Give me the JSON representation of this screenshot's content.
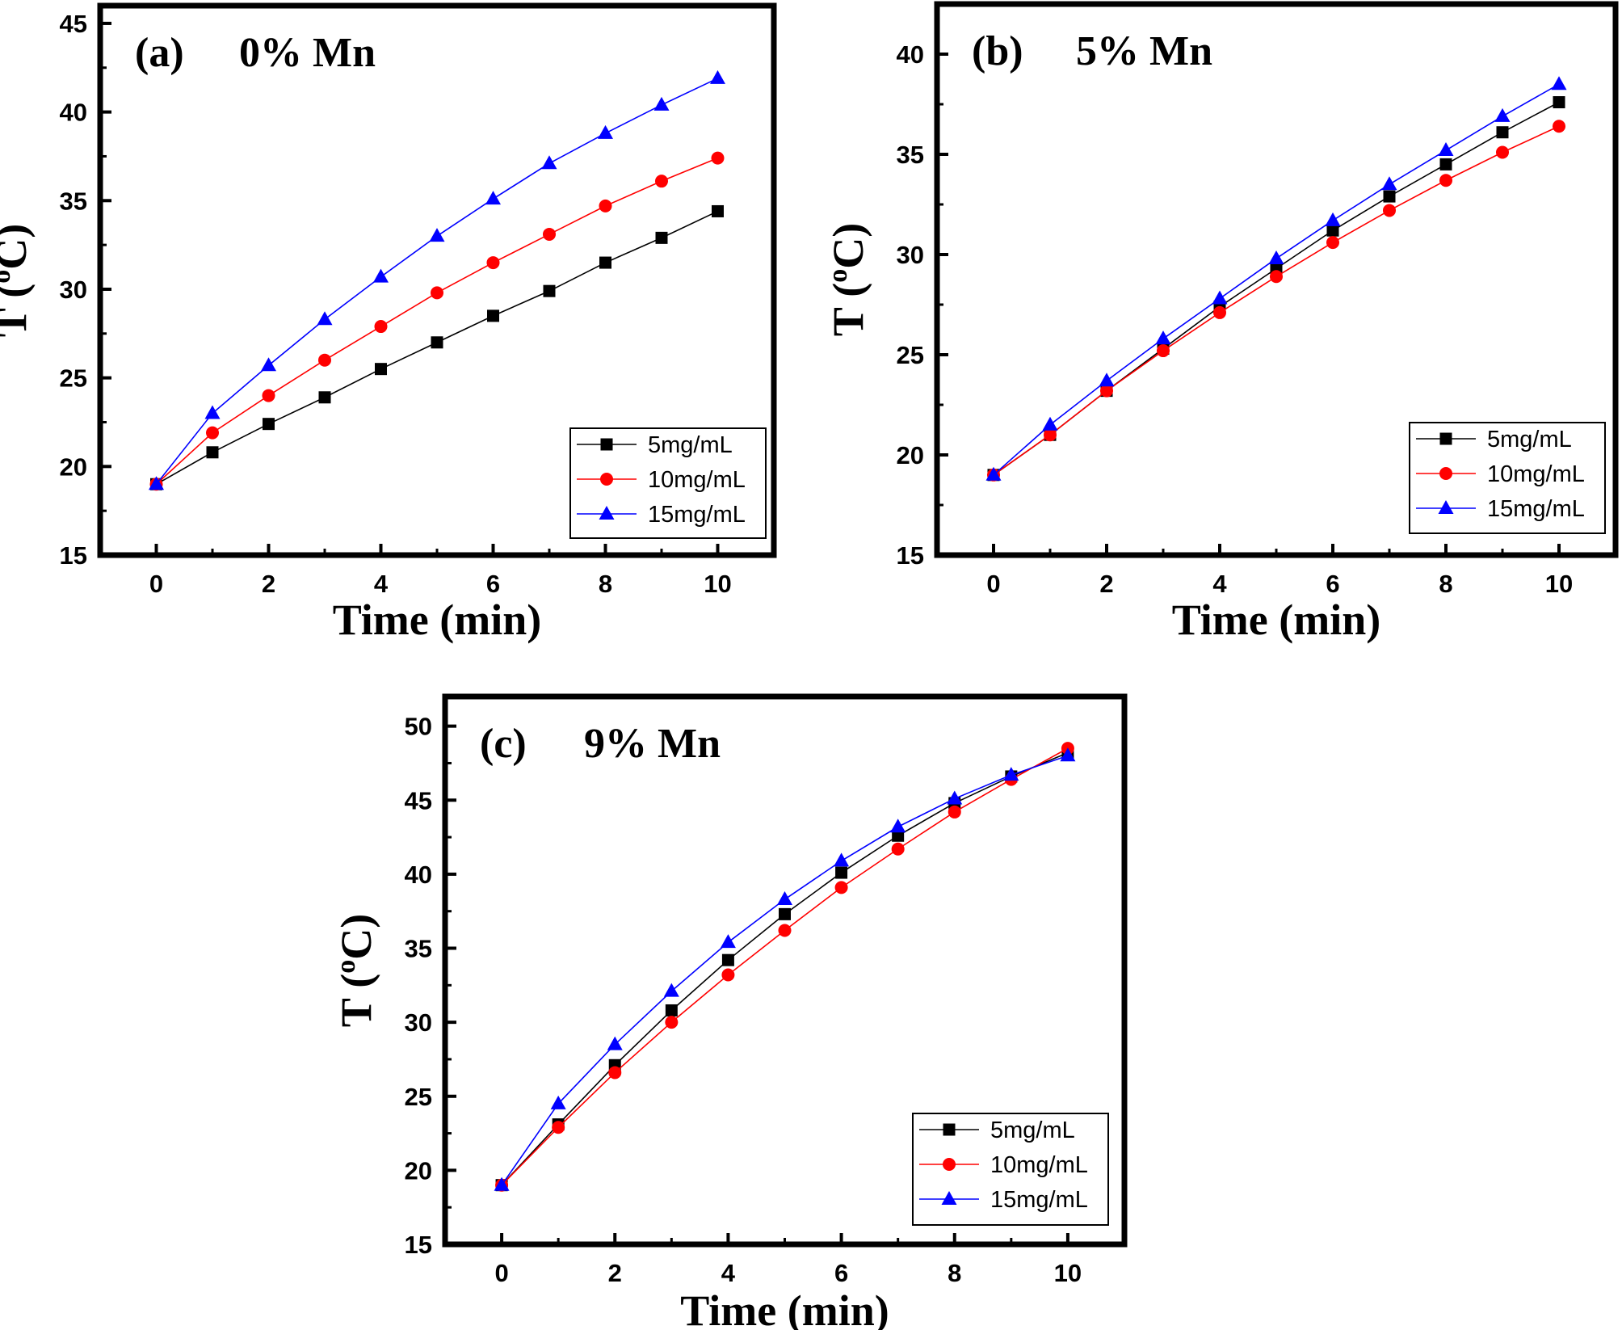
{
  "figure": {
    "background": "#ffffff"
  },
  "chart_data": [
    {
      "id": "a",
      "type": "line",
      "panel_label": "(a)",
      "title": "0% Mn",
      "xlabel": "Time (min)",
      "ylabel": "T (oC)",
      "ylabel_main": "T (",
      "ylabel_sup": "o",
      "ylabel_end": "C)",
      "xlim": [
        -1,
        11
      ],
      "ylim": [
        15,
        46
      ],
      "xticks": [
        0,
        2,
        4,
        6,
        8,
        10
      ],
      "yticks": [
        15,
        20,
        25,
        30,
        35,
        40,
        45
      ],
      "grid": false,
      "legend_position": "bottom-right",
      "x": [
        0,
        1,
        2,
        3,
        4,
        5,
        6,
        7,
        8,
        9,
        10
      ],
      "series": [
        {
          "name": "5mg/mL",
          "color": "#000000",
          "marker": "square",
          "values": [
            19.0,
            20.8,
            22.4,
            23.9,
            25.5,
            27.0,
            28.5,
            29.9,
            31.5,
            32.9,
            34.4
          ]
        },
        {
          "name": "10mg/mL",
          "color": "#ff0000",
          "marker": "circle",
          "values": [
            19.0,
            21.9,
            24.0,
            26.0,
            27.9,
            29.8,
            31.5,
            33.1,
            34.7,
            36.1,
            37.4
          ]
        },
        {
          "name": "15mg/mL",
          "color": "#0000ff",
          "marker": "triangle",
          "values": [
            19.0,
            23.0,
            25.7,
            28.3,
            30.7,
            33.0,
            35.1,
            37.1,
            38.8,
            40.4,
            41.9
          ]
        }
      ]
    },
    {
      "id": "b",
      "type": "line",
      "panel_label": "(b)",
      "title": "5% Mn",
      "xlabel": "Time (min)",
      "ylabel": "T (oC)",
      "ylabel_main": "T (",
      "ylabel_sup": "o",
      "ylabel_end": "C)",
      "xlim": [
        -1,
        11
      ],
      "ylim": [
        15,
        42.5
      ],
      "xticks": [
        0,
        2,
        4,
        6,
        8,
        10
      ],
      "yticks": [
        15,
        20,
        25,
        30,
        35,
        40
      ],
      "grid": false,
      "legend_position": "bottom-right",
      "x": [
        0,
        1,
        2,
        3,
        4,
        5,
        6,
        7,
        8,
        9,
        10
      ],
      "series": [
        {
          "name": "5mg/mL",
          "color": "#000000",
          "marker": "square",
          "values": [
            19.0,
            21.0,
            23.2,
            25.3,
            27.4,
            29.3,
            31.2,
            32.9,
            34.5,
            36.1,
            37.6
          ]
        },
        {
          "name": "10mg/mL",
          "color": "#ff0000",
          "marker": "circle",
          "values": [
            19.0,
            21.0,
            23.2,
            25.2,
            27.1,
            28.9,
            30.6,
            32.2,
            33.7,
            35.1,
            36.4
          ]
        },
        {
          "name": "15mg/mL",
          "color": "#0000ff",
          "marker": "triangle",
          "values": [
            19.0,
            21.5,
            23.7,
            25.8,
            27.8,
            29.8,
            31.7,
            33.5,
            35.2,
            36.9,
            38.5
          ]
        }
      ]
    },
    {
      "id": "c",
      "type": "line",
      "panel_label": "(c)",
      "title": "9% Mn",
      "xlabel": "Time (min)",
      "ylabel": "T (oC)",
      "ylabel_main": "T (",
      "ylabel_sup": "o",
      "ylabel_end": "C)",
      "xlim": [
        -1,
        11
      ],
      "ylim": [
        15,
        52
      ],
      "xticks": [
        0,
        2,
        4,
        6,
        8,
        10
      ],
      "yticks": [
        15,
        20,
        25,
        30,
        35,
        40,
        45,
        50
      ],
      "grid": false,
      "legend_position": "bottom-right",
      "x": [
        0,
        1,
        2,
        3,
        4,
        5,
        6,
        7,
        8,
        9,
        10
      ],
      "series": [
        {
          "name": "5mg/mL",
          "color": "#000000",
          "marker": "square",
          "values": [
            19.0,
            23.1,
            27.1,
            30.8,
            34.2,
            37.3,
            40.1,
            42.6,
            44.8,
            46.6,
            48.2
          ]
        },
        {
          "name": "10mg/mL",
          "color": "#ff0000",
          "marker": "circle",
          "values": [
            19.0,
            22.9,
            26.6,
            30.0,
            33.2,
            36.2,
            39.1,
            41.7,
            44.2,
            46.4,
            48.5
          ]
        },
        {
          "name": "15mg/mL",
          "color": "#0000ff",
          "marker": "triangle",
          "values": [
            19.0,
            24.5,
            28.5,
            32.1,
            35.4,
            38.3,
            40.9,
            43.2,
            45.1,
            46.7,
            48.0
          ]
        }
      ]
    }
  ]
}
